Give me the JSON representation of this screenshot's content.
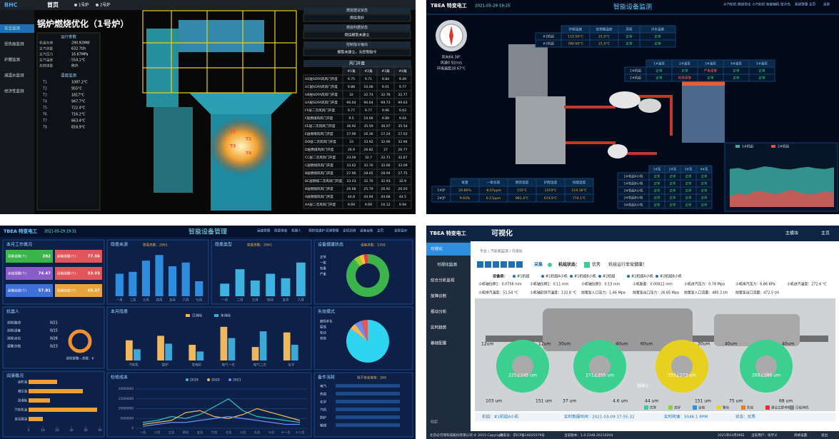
{
  "boiler": {
    "logo": "BHC",
    "tab": "首页",
    "tabs": [
      "1号炉",
      "2号炉"
    ],
    "sidebar": [
      "安全监测",
      "受热面监测",
      "炉膛监测",
      "减温水监测",
      "经济性监测"
    ],
    "title": "锅炉燃烧优化（1号炉）",
    "params_title": "运行参数",
    "params": [
      [
        "机组负荷",
        "290.92MW"
      ],
      [
        "主汽流量",
        "632.7t/h"
      ],
      [
        "主汽压力",
        "16.67MPa"
      ],
      [
        "主汽温度",
        "554.1°C"
      ],
      [
        "总燃煤量",
        "8t/h"
      ]
    ],
    "temp_title": "温度监测",
    "temps": [
      [
        "T1",
        "1087.2°C"
      ],
      [
        "T2",
        "955°C"
      ],
      [
        "T3",
        "1817°C"
      ],
      [
        "T4",
        "947.7°C"
      ],
      [
        "T5",
        "722.4°C"
      ],
      [
        "T6",
        "716.2°C"
      ],
      [
        "T7",
        "663.4°C"
      ],
      [
        "T8",
        "816.9°C"
      ]
    ],
    "status": [
      {
        "title": "燃烧建议状态",
        "text": "燃烧良好"
      },
      {
        "title": "燃烧判据状态",
        "text": "燃烧模型未建立"
      },
      {
        "title": "控制指令输出",
        "text": "模型未建立，无控制指令"
      }
    ],
    "table_title": "风门开度",
    "table_header": [
      "#1角",
      "#2角",
      "#3角",
      "#4角"
    ],
    "rows": [
      [
        "UE层SOFA风风门开度",
        9.75,
        9.71,
        9.84,
        9.49
      ],
      [
        "UC层SOFA风风门开度",
        9.88,
        10.08,
        9.01,
        9.77
      ],
      [
        "UB层SOFA风风门开度",
        32,
        32.74,
        32.78,
        32.77
      ],
      [
        "UA层SOFA风风门开度",
        90.64,
        90.64,
        99.73,
        99.63
      ],
      [
        "FF层二次风风门开度",
        9.77,
        9.77,
        9.96,
        9.63
      ],
      [
        "F层燃煤风风门开度",
        9.5,
        10.06,
        9.89,
        9.04
      ],
      [
        "EE层二次风风门开度",
        36.92,
        35.59,
        36.07,
        35.54
      ],
      [
        "E层燃煤风风门开度",
        27.96,
        26.36,
        27.24,
        27.03
      ],
      [
        "DD层二次风风门开度",
        33,
        33.92,
        32.96,
        32.94
      ],
      [
        "D层燃煤风风门开度",
        26.9,
        26.82,
        27,
        26.77
      ],
      [
        "CC层二次风风门开度",
        33.06,
        32.7,
        32.71,
        32.87
      ],
      [
        "C层燃煤风风门开度",
        33.62,
        32.76,
        32.66,
        33.09
      ],
      [
        "B层燃煤风风门开度",
        27.96,
        28.65,
        28.94,
        27.75
      ],
      [
        "BC层燃煤二次风风门开度",
        33.03,
        32.76,
        32.93,
        32.9
      ],
      [
        "B层燃煤风风门开度",
        26.68,
        25.79,
        26.92,
        26.03
      ],
      [
        "A层燃煤风风门开度",
        44.8,
        44.94,
        44.68,
        44.5
      ],
      [
        "AA层二次风风门开度",
        9.69,
        9.69,
        10.12,
        9.94
      ]
    ],
    "fire_labels": [
      "T1",
      "T2",
      "T3",
      "T4"
    ]
  },
  "monitor": {
    "logo": "TBEA 特变电工",
    "time": "2021-05-29 19:25",
    "title": "智能设备监测",
    "nav": [
      "大汽轮机",
      "燃烧优化",
      "小汽轮机",
      "智能辅机",
      "空冷岛",
      "系统管理",
      "主页",
      "全屏"
    ],
    "wind": [
      "风向64.38°",
      "风速0.92m/s",
      "环境温度28.67°C"
    ],
    "top_header": [
      "炉膛温度",
      "空预器温度",
      "风机",
      "冷水温度"
    ],
    "top_rows": [
      [
        "#1机组",
        "119.50°C",
        "21.0°C",
        "正常",
        "正常"
      ],
      [
        "#2机组",
        "780.60°C",
        "21.0°C",
        "正常",
        "正常"
      ]
    ],
    "pump_header": [
      "1#油泵",
      "2#油泵",
      "3#油泵",
      "4#油泵",
      "5#油泵"
    ],
    "pump_rows": [
      [
        "1#机组",
        "正常",
        "正常",
        "严重报警",
        "正常",
        "正常"
      ],
      [
        "2#机组",
        "正常",
        "轻微报警",
        "正常",
        "正常",
        "正常"
      ]
    ],
    "gas_header": [
      "氧量",
      "一氧化碳",
      "燃烧温度",
      "炉膛温度",
      "排烟温度"
    ],
    "gas_rows": [
      [
        "1#炉",
        "20.86%",
        "-8.07ppm",
        "155℃",
        "1319℃",
        "119.18℃"
      ],
      [
        "2#炉",
        "9.93%",
        "0.17ppm",
        "981.4℃",
        "674.6℃",
        "770.1℃"
      ]
    ],
    "unit_header": [
      "1#泵",
      "2#泵",
      "3#泵",
      "4#泵"
    ],
    "unit_rows": [
      [
        "1#机组A小机",
        "正常",
        "正常",
        "正常",
        "正常"
      ],
      [
        "1#机组B小机",
        "正常",
        "正常",
        "正常",
        "正常"
      ],
      [
        "2#机组A小机",
        "正常",
        "正常",
        "正常",
        "正常"
      ],
      [
        "2#机组B小机",
        "正常",
        "正常",
        "正常",
        "正常"
      ],
      [
        "3#机组A小机",
        "正常",
        "正常",
        "正常",
        "正常"
      ]
    ],
    "area": {
      "ylim": [
        0,
        100
      ],
      "series": [
        {
          "name": "1#机组",
          "color": "#3aa9a0",
          "values": [
            70,
            72,
            68,
            71,
            75,
            73,
            70,
            69,
            72,
            74,
            71,
            70,
            73
          ]
        },
        {
          "name": "2#机组",
          "color": "#d9534f",
          "values": [
            20,
            25,
            22,
            30,
            28,
            24,
            26,
            32,
            27,
            23,
            25,
            29,
            26
          ]
        }
      ]
    }
  },
  "manage": {
    "logo": "TBEA 特变电工",
    "time": "2021-05-29 19:31",
    "title": "智能设备管理",
    "nav": [
      "运维管理",
      "隐患排查",
      "机器人",
      "预防性维护",
      "润滑管理",
      "全优润滑",
      "设备台账",
      "主页",
      "全屏显示"
    ],
    "work": {
      "title": "本月工作概况",
      "items": [
        {
          "label": "到期提醒(个)",
          "value": 282,
          "color": "#39b54a"
        },
        {
          "label": "超期提醒(个)",
          "value": 77.66,
          "color": "#e0565b"
        },
        {
          "label": "完成提醒(个)",
          "value": 74.47,
          "color": "#8a5cc7"
        },
        {
          "label": "延期提醒(个)",
          "value": 93.03,
          "color": "#e0565b"
        },
        {
          "label": "超期完成(个)",
          "value": 57.81,
          "color": "#3f6fd8"
        },
        {
          "label": "延期完成(个)",
          "value": 65.27,
          "color": "#e8a33c"
        }
      ]
    },
    "robot": {
      "title": "机器人",
      "list": [
        [
          "巡检路线",
          "0/21"
        ],
        [
          "巡检设备",
          "0/15"
        ],
        [
          "巡检点位",
          "0/26"
        ],
        [
          "报警次数",
          "0/23"
        ]
      ],
      "alarm": "巡检报警—总数：6"
    },
    "lube": {
      "title": "润滑概况",
      "categories": [
        "齿轮油",
        "液压油",
        "润滑脂",
        "汽轮机油",
        "变压器油"
      ],
      "values": [
        20,
        38,
        15,
        48,
        10
      ],
      "color": "#f0a030",
      "xlim": [
        0,
        50
      ],
      "xticks": [
        0,
        10,
        20,
        30,
        40,
        50
      ]
    },
    "source": {
      "title": "隐患来源",
      "total": "隐患总数：2061",
      "categories": [
        "一月",
        "二月",
        "三月",
        "四月",
        "五月",
        "六月",
        "七月"
      ],
      "values": [
        60,
        65,
        95,
        110,
        80,
        90,
        40
      ],
      "color": "#2f8de0",
      "ylim": [
        0,
        120
      ]
    },
    "kind": {
      "title": "隐患类型",
      "total": "隐患总数：2061",
      "categories": [
        "一月",
        "二月",
        "三月",
        "四月",
        "五月",
        "六月"
      ],
      "values": [
        28,
        60,
        35,
        50,
        40,
        75
      ],
      "color": "#3fb3e0",
      "ylim": [
        0,
        100
      ]
    },
    "month": {
      "title": "本月隐患",
      "categories": [
        "汽轮机",
        "锅炉",
        "发电机",
        "电气一次",
        "电气二次",
        "化学"
      ],
      "ylim": [
        0,
        35
      ],
      "series": [
        {
          "name": "已消除",
          "color": "#f0b85a",
          "values": [
            18,
            22,
            14,
            30,
            12,
            25
          ]
        },
        {
          "name": "未消除",
          "color": "#3fa7d6",
          "values": [
            10,
            15,
            8,
            20,
            26,
            14
          ]
        }
      ]
    },
    "cost": {
      "title": "检修成本",
      "categories": [
        "一月",
        "二月",
        "三月",
        "四月",
        "五月",
        "六月",
        "七月",
        "八月",
        "九月",
        "十月",
        "十一月",
        "十二月"
      ],
      "ylim": [
        0,
        20000000
      ],
      "yticks": [
        0,
        5000000,
        10000000,
        15000000,
        20000000
      ],
      "series": [
        {
          "name": "2019",
          "color": "#2fc4b2",
          "values": [
            3000000,
            4000000,
            6000000,
            5000000,
            7000000,
            11000000,
            15000000,
            9000000,
            6000000,
            5000000,
            4000000,
            3000000
          ]
        },
        {
          "name": "2020",
          "color": "#f0b85a",
          "values": [
            2000000,
            3000000,
            4000000,
            8000000,
            9000000,
            6000000,
            5000000,
            7000000,
            10000000,
            8000000,
            6000000,
            4000000
          ]
        },
        {
          "name": "2021",
          "color": "#6a8cff",
          "values": [
            1000000,
            2000000,
            3000000,
            3000000,
            4000000,
            5000000,
            6000000,
            5000000,
            4000000,
            3000000,
            2000000,
            2000000
          ]
        }
      ]
    },
    "health": {
      "title": "设备健康状态",
      "total": "设备总数：1350",
      "slices": [
        {
          "name": "正常",
          "value": 1200,
          "color": "#3cb44b"
        },
        {
          "name": "一般",
          "value": 60,
          "color": "#9acd32"
        },
        {
          "name": "较重",
          "value": 50,
          "color": "#f0c040"
        },
        {
          "name": "严重",
          "value": 40,
          "color": "#e04040"
        }
      ]
    },
    "fail": {
      "title": "失效模式",
      "slices": [
        {
          "name": "磨损老化",
          "value": 85,
          "color": "#2fd5f0"
        },
        {
          "name": "腐蚀",
          "value": 5,
          "color": "#f0b85a"
        },
        {
          "name": "松动",
          "value": 5,
          "color": "#6a8cff"
        },
        {
          "name": "其他",
          "value": 5,
          "color": "#e05a5a"
        }
      ]
    },
    "parts": {
      "title": "备件消耗",
      "note": "低于安全库存：269",
      "names": [
        "电气",
        "热控",
        "化学",
        "汽机",
        "锅炉",
        "输煤"
      ]
    }
  },
  "visual": {
    "logo": "TBEA 特变电工",
    "title": "可视化",
    "top": [
      "主模块",
      "主页"
    ],
    "menu": [
      "可视化",
      "可视化监测",
      "综合分析监视",
      "故障诊断",
      "振动分析",
      "实时趋势",
      "基础配置"
    ],
    "collapse": "收起",
    "breadcrumb": "平台 / 汽轮机监测 / 可视化",
    "collect": "采集",
    "state_label": "机组状态：",
    "state": "优秀",
    "state_msg": "机组运行非常健康！",
    "device_label": "设备类：",
    "devices": [
      "#1机组",
      "#1机组A小机",
      "#1机组B小机",
      "#2机组",
      "#2机组A小机",
      "#2机组B小机"
    ],
    "measures": [
      "小机轴位移1：0.0756 mm",
      "小机轴位移2：0.11 mm",
      "小机轴位移3：0.13 mm",
      "小机胀差：0.00812 mm",
      "小机进汽压力：0.78 Mpa",
      "小机排汽压力：6.86 KPa",
      "小机进汽温度：272.6 °C",
      "小机排汽温度：51.54 °C",
      "小机轴封供汽温度：132.8 °C",
      "前置泵入口压力：1.46 Mpa",
      "前置泵出口压力：26.85 Mpa",
      "前置泵入口流量：480.3 t/h",
      "前置泵出口流量：472.5 t/h"
    ],
    "circles": [
      {
        "label": "225∠245 um",
        "color": "#3bd08f"
      },
      {
        "label": "271∠255 um",
        "color": "#3bd08f"
      },
      {
        "label": "333∠273 um",
        "color": "#e8d020"
      },
      {
        "label": "268∠286 um",
        "color": "#3bd08f"
      }
    ],
    "top_vib": [
      "12um",
      "12um",
      "30um",
      "40um",
      "60um",
      "30um",
      "40um",
      "40um"
    ],
    "bottom_vib": [
      "103 um",
      "151 um",
      "37 um",
      "4.6 um",
      "44 um",
      "151 um",
      "75 um",
      "68 um"
    ],
    "bearing": "轴承2",
    "legend": [
      {
        "name": "优秀",
        "color": "#3bd08f"
      },
      {
        "name": "良好",
        "color": "#8ad13b"
      },
      {
        "name": "合格",
        "color": "#2f8fe0"
      },
      {
        "name": "警告",
        "color": "#f0d020"
      },
      {
        "name": "危险",
        "color": "#e08020"
      },
      {
        "name": "建议立即停机",
        "color": "#e03030"
      },
      {
        "name": "已经停机",
        "color": "#888888"
      }
    ],
    "status": [
      "机组：#1机组A小机",
      "实时数据时间：2021-03-09 17:55:32",
      "实时转速：5046.1 RPM",
      "状态：优秀"
    ],
    "footer": [
      "北京必可测科技股份有限公司 © 2015 Copyright",
      "备案号：京ICP备14025579号",
      "当前版本：1.0.2348.20210204",
      "2021年03月09日",
      "当前用户：张宇义",
      "风格设置",
      "退出"
    ]
  }
}
